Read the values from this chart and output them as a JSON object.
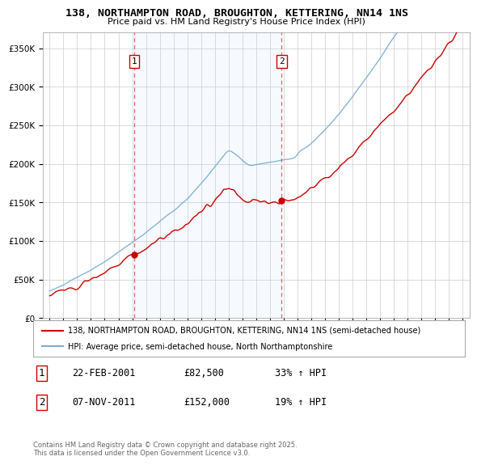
{
  "title": "138, NORTHAMPTON ROAD, BROUGHTON, KETTERING, NN14 1NS",
  "subtitle": "Price paid vs. HM Land Registry's House Price Index (HPI)",
  "ylabel_ticks": [
    "£0",
    "£50K",
    "£100K",
    "£150K",
    "£200K",
    "£250K",
    "£300K",
    "£350K"
  ],
  "ytick_values": [
    0,
    50000,
    100000,
    150000,
    200000,
    250000,
    300000,
    350000
  ],
  "ylim": [
    0,
    370000
  ],
  "xlim_start": 1994.5,
  "xlim_end": 2025.5,
  "sale1_date": 2001.13,
  "sale2_date": 2011.85,
  "sale1_price": 82500,
  "sale2_price": 152000,
  "property_color": "#cc0000",
  "hpi_color": "#7aadd4",
  "shade_color": "#ddeeff",
  "vline_color": "#dd6666",
  "legend_property": "138, NORTHAMPTON ROAD, BROUGHTON, KETTERING, NN14 1NS (semi-detached house)",
  "legend_hpi": "HPI: Average price, semi-detached house, North Northamptonshire",
  "table_rows": [
    {
      "num": "1",
      "date": "22-FEB-2001",
      "price": "£82,500",
      "hpi": "33% ↑ HPI"
    },
    {
      "num": "2",
      "date": "07-NOV-2011",
      "price": "£152,000",
      "hpi": "19% ↑ HPI"
    }
  ],
  "footnote": "Contains HM Land Registry data © Crown copyright and database right 2025.\nThis data is licensed under the Open Government Licence v3.0.",
  "background_color": "#ffffff",
  "grid_color": "#cccccc"
}
